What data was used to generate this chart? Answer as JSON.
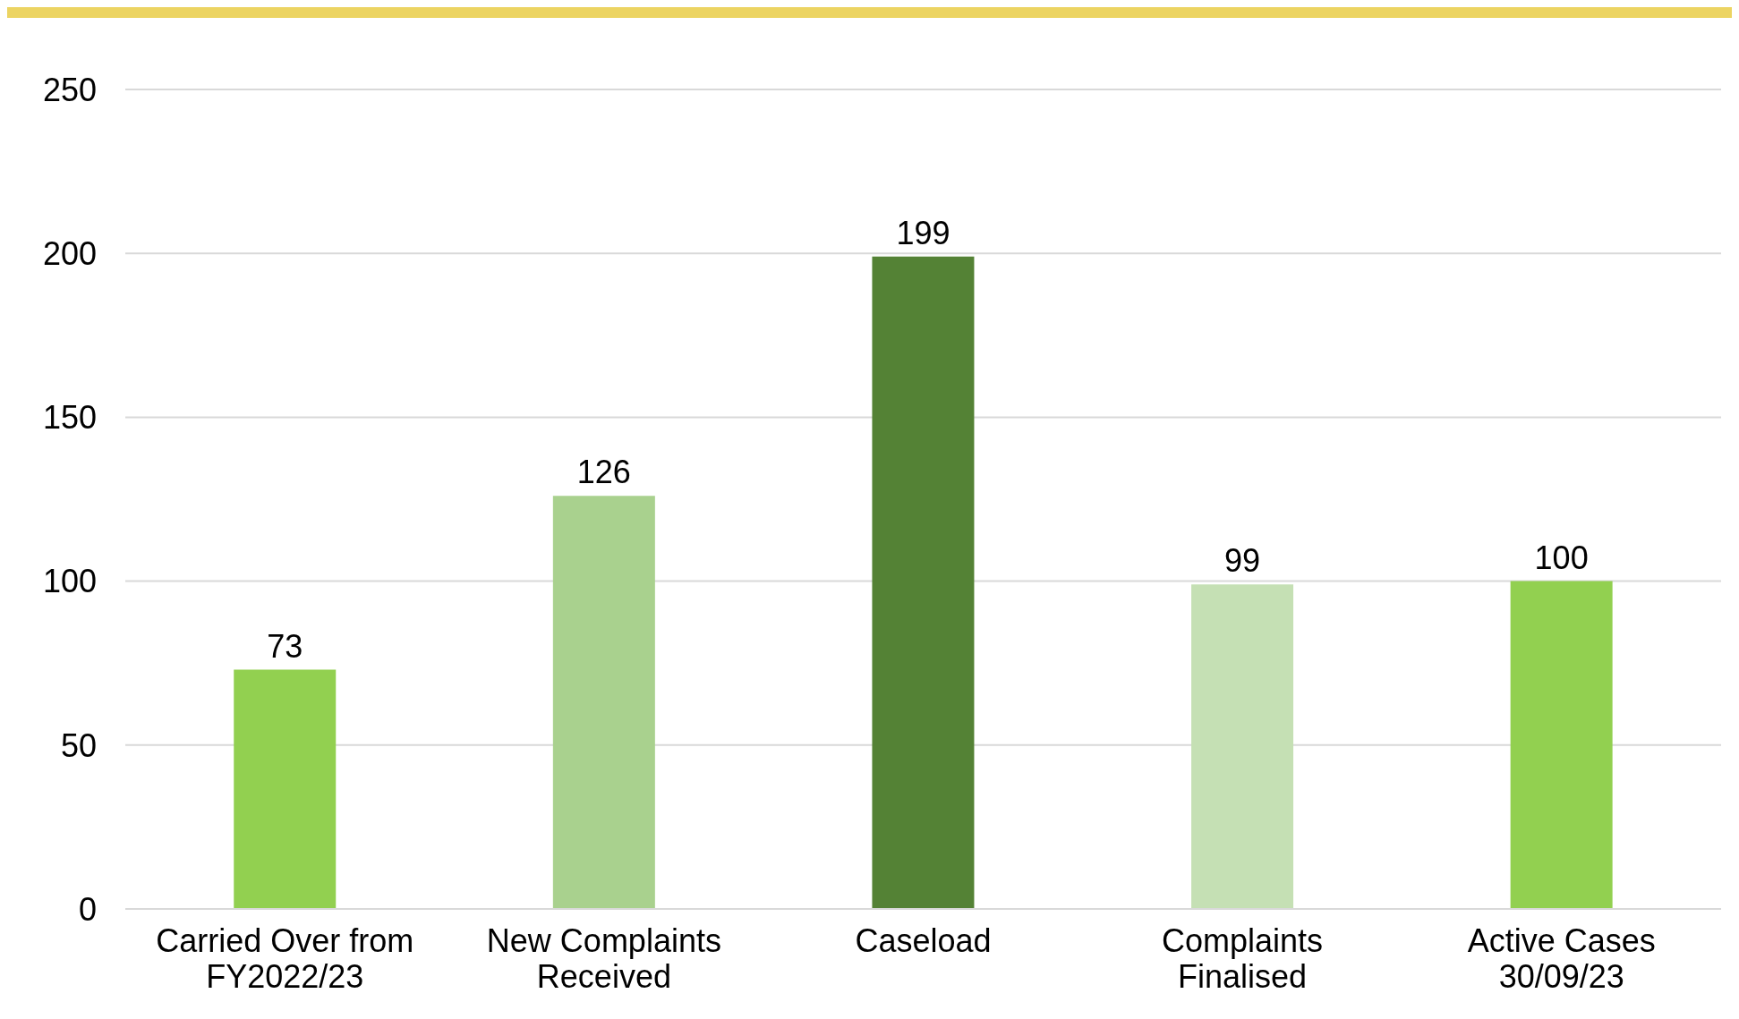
{
  "chart_data": {
    "type": "bar",
    "categories": [
      "Carried Over from FY2022/23",
      "New Complaints Received",
      "Caseload",
      "Complaints Finalised",
      "Active Cases 30/09/23"
    ],
    "values": [
      73,
      126,
      199,
      99,
      100
    ],
    "colors": [
      "#92d050",
      "#a9d18e",
      "#548235",
      "#c5e0b4",
      "#92d050"
    ],
    "ylim": [
      0,
      250
    ],
    "yticks": [
      0,
      50,
      100,
      150,
      200,
      250
    ],
    "grid": "y",
    "data_labels": true
  }
}
